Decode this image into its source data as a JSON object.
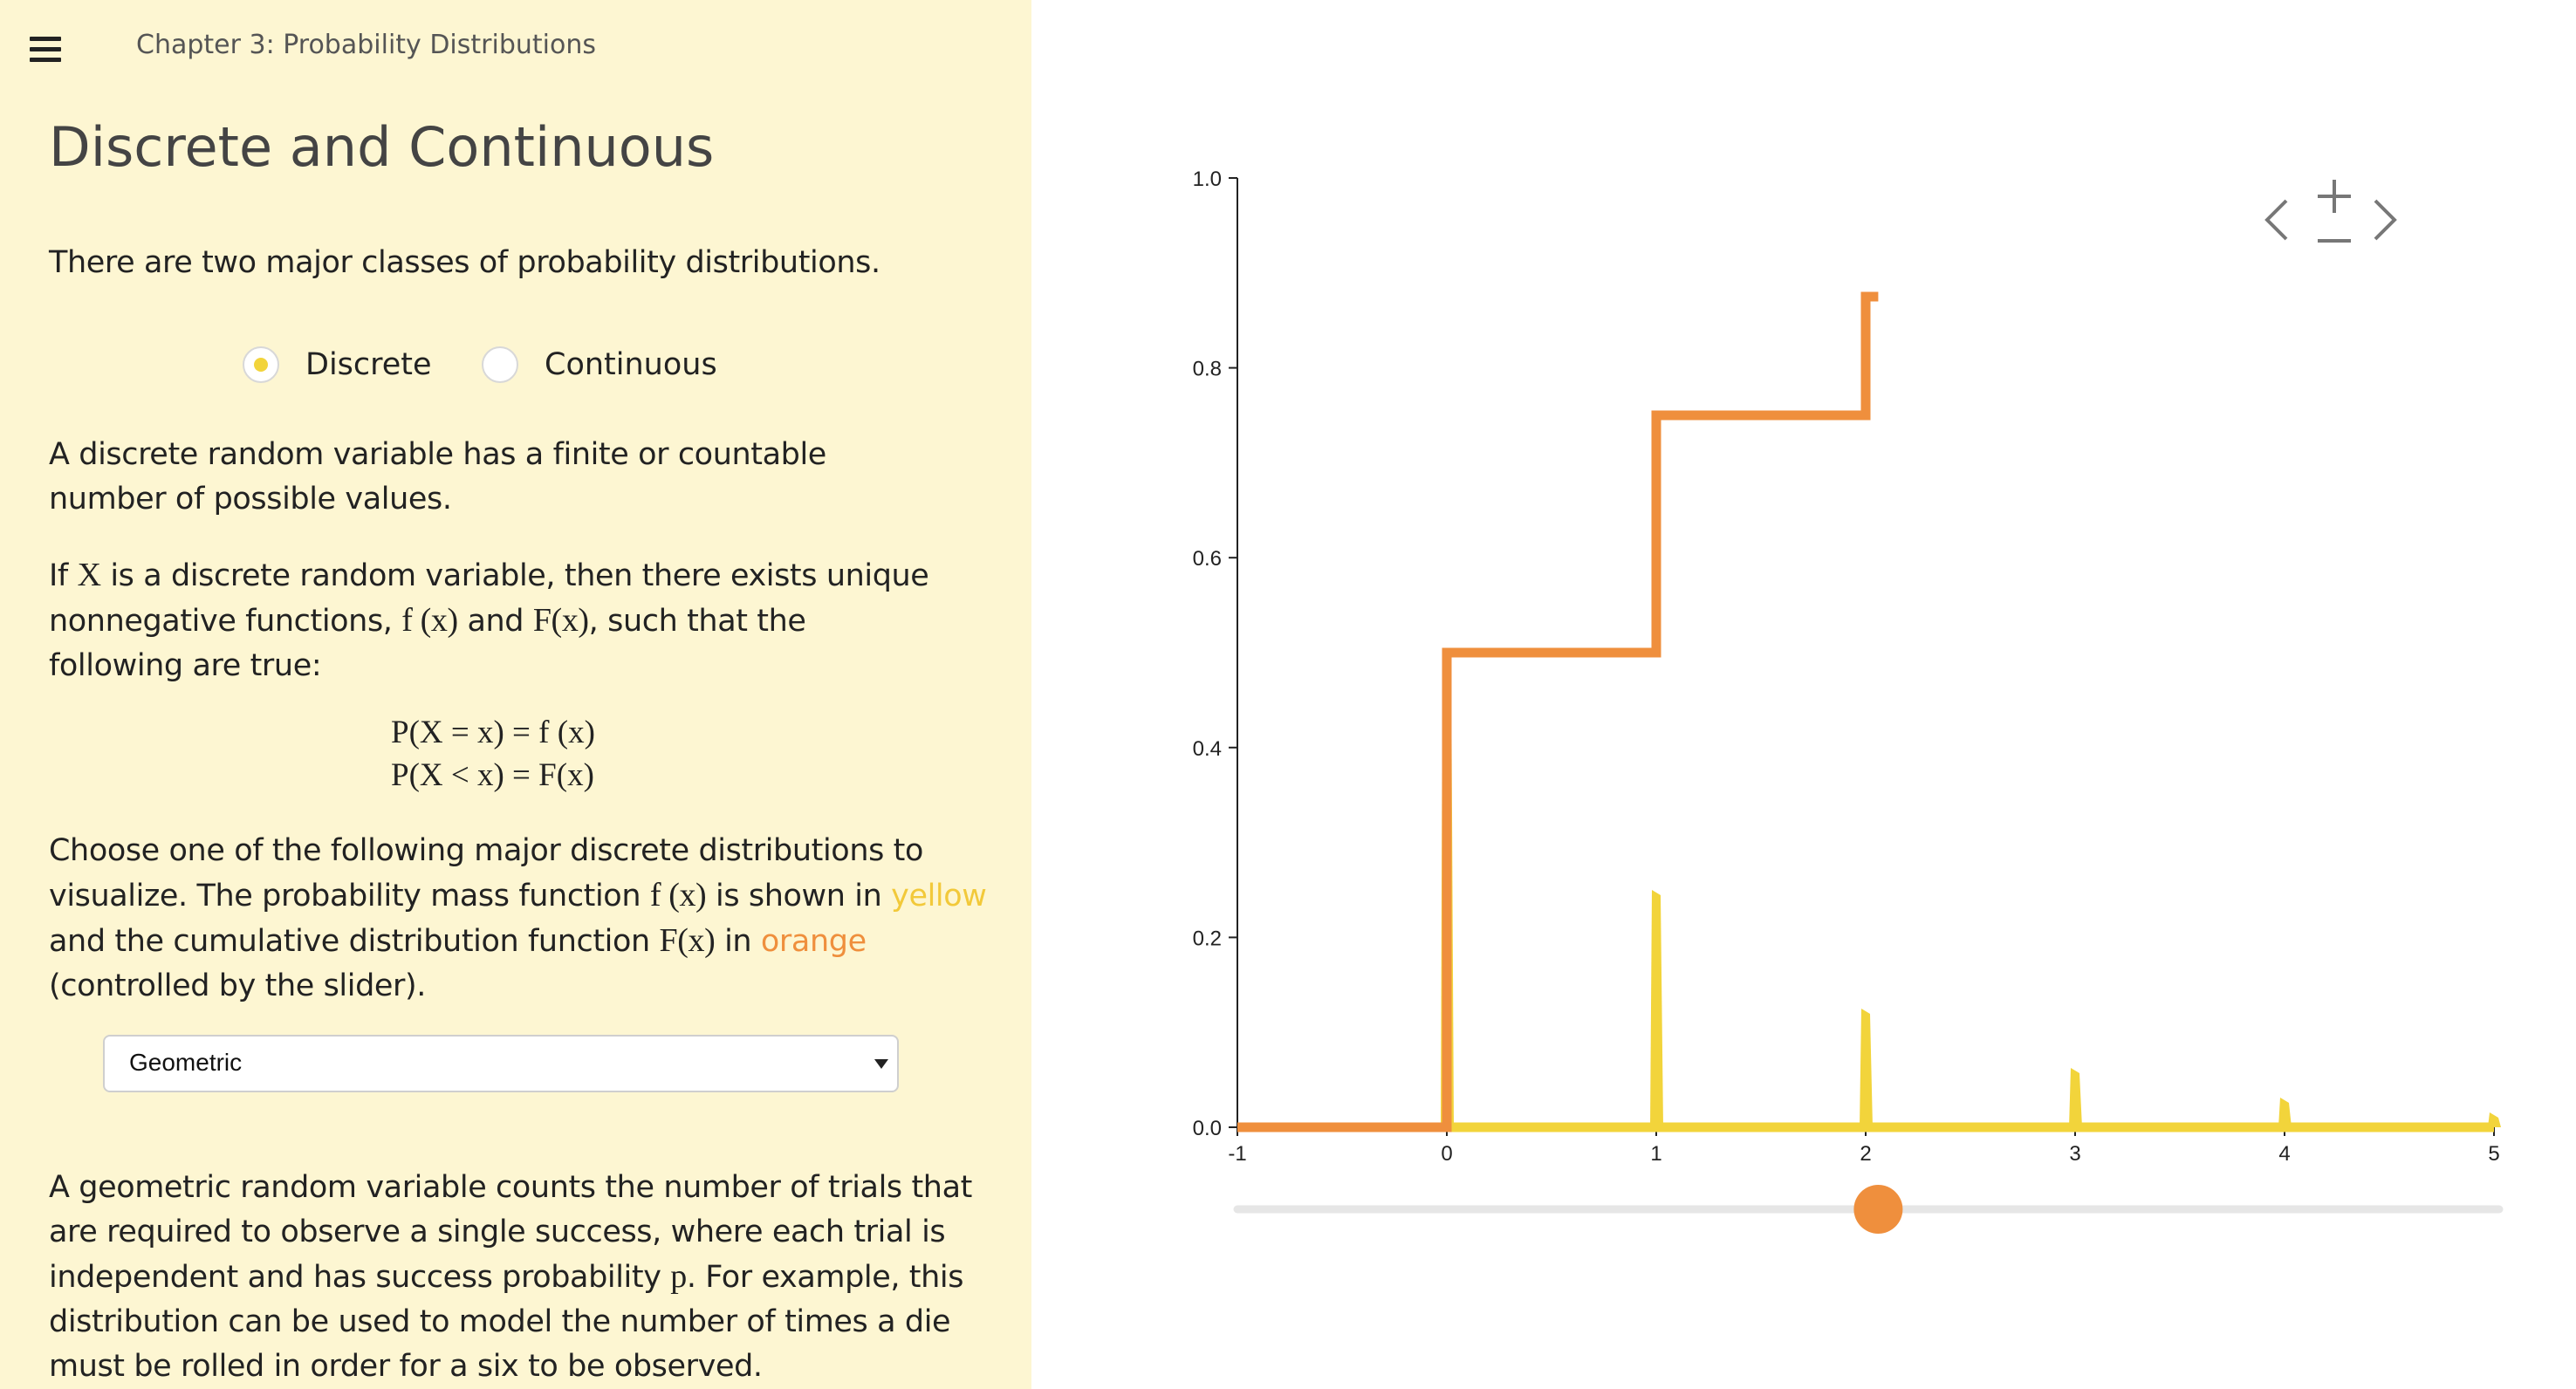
{
  "header": {
    "menu_icon": "hamburger-menu-icon",
    "breadcrumb": "Chapter 3: Probability Distributions"
  },
  "section_title": "Discrete and Continuous",
  "intro": "There are two major classes of probability distributions.",
  "radio": {
    "selected": "Discrete",
    "options": [
      {
        "label": "Discrete"
      },
      {
        "label": "Continuous"
      }
    ]
  },
  "discrete_def": "A discrete random variable has a finite or countable number of possible values.",
  "para2": {
    "a": "If ",
    "X": "X",
    "b": " is a discrete random variable, then there exists unique nonnegative functions, ",
    "fx": "f (x)",
    "c": " and ",
    "Fx": "F(x)",
    "d": ", such that the following are true:"
  },
  "formulas": [
    "P(X = x) = f (x)",
    "P(X < x) = F(x)"
  ],
  "para3": {
    "a": "Choose one of the following major discrete distributions to visualize. The probability mass function ",
    "fx": "f (x)",
    "b": " is shown in ",
    "yellow": "yellow",
    "c": " and the cumulative distribution function ",
    "Fx": "F(x)",
    "d": " in ",
    "orange": "orange",
    "e": " (controlled by the slider)."
  },
  "dropdown": {
    "selected": "Geometric"
  },
  "para4": {
    "a": "A geometric random variable counts the number of trials that are required to observe a single success, where each trial is independent and has success probability ",
    "p": "p",
    "b": ". For example, this distribution can be used to model the number of times a die must be rolled in order for a six to be observed."
  },
  "colors": {
    "pmf": "#f2d43b",
    "cdf": "#ef8f3d",
    "sidebar_bg": "#fdf6d2"
  },
  "chart_data": {
    "type": "line",
    "xlim": [
      -1,
      5
    ],
    "ylim": [
      0,
      1
    ],
    "x_ticks": [
      "-1",
      "0",
      "1",
      "2",
      "3",
      "4",
      "5"
    ],
    "y_ticks": [
      "0.0",
      "0.2",
      "0.4",
      "0.6",
      "0.8",
      "1.0"
    ],
    "grid": false,
    "series": [
      {
        "kind": "pmf",
        "x": [
          0,
          1,
          2,
          3,
          4,
          5
        ],
        "y": [
          0.5,
          0.25,
          0.125,
          0.0625,
          0.03125,
          0.015625
        ]
      },
      {
        "kind": "cdf",
        "x": [
          0,
          1,
          2
        ],
        "y": [
          0.5,
          0.75,
          0.875
        ]
      }
    ],
    "slider_value": 2.06,
    "nav_icons": [
      "chevron-left-icon",
      "zoom-in-icon",
      "zoom-out-icon",
      "chevron-right-icon"
    ]
  }
}
